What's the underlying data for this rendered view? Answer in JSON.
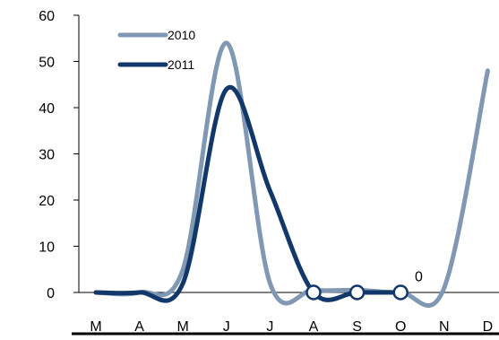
{
  "chart_data": {
    "type": "line",
    "title": "",
    "xlabel": "",
    "ylabel": "",
    "categories": [
      "M",
      "A",
      "M",
      "J",
      "J",
      "A",
      "S",
      "O",
      "N",
      "D"
    ],
    "ylim": [
      0,
      60
    ],
    "yticks": [
      0,
      10,
      20,
      30,
      40,
      50,
      60
    ],
    "grid": false,
    "legend": "top-left",
    "series": [
      {
        "name": "2010",
        "color": "#8098b3",
        "values": [
          0,
          0,
          5,
          54,
          2,
          0.5,
          0.5,
          0,
          1,
          48
        ]
      },
      {
        "name": "2011",
        "color": "#12376a",
        "values": [
          0,
          0,
          2,
          44,
          22,
          0,
          0,
          0,
          null,
          null
        ],
        "markers": [
          5,
          6,
          7
        ]
      }
    ],
    "annotations": [
      {
        "text": "0",
        "category_index": 7.5,
        "y": 2
      }
    ]
  }
}
